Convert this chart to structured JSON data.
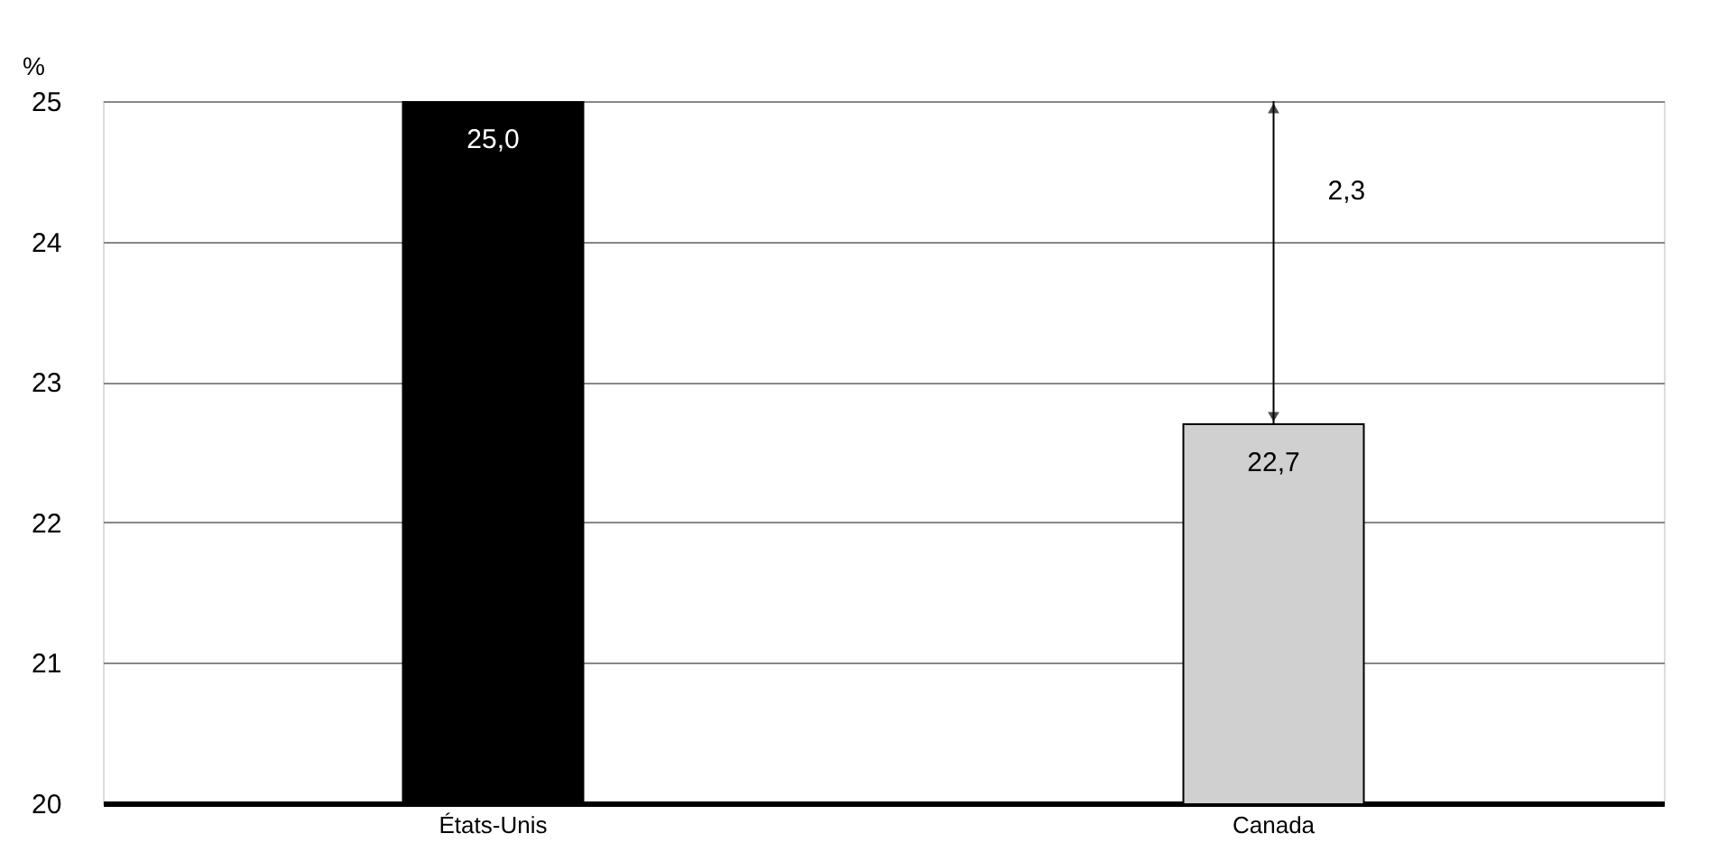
{
  "chart_data": {
    "type": "bar",
    "ylabel": "%",
    "categories": [
      "États-Unis",
      "Canada"
    ],
    "values": [
      25.0,
      22.7
    ],
    "colors": [
      "#000000",
      "#d0d0d0"
    ],
    "value_labels": [
      "25,0",
      "22,7"
    ],
    "ylim": [
      20,
      25
    ],
    "yticks": [
      20,
      21,
      22,
      23,
      24,
      25
    ],
    "grid": "y",
    "annotations": [
      "2,3"
    ]
  }
}
